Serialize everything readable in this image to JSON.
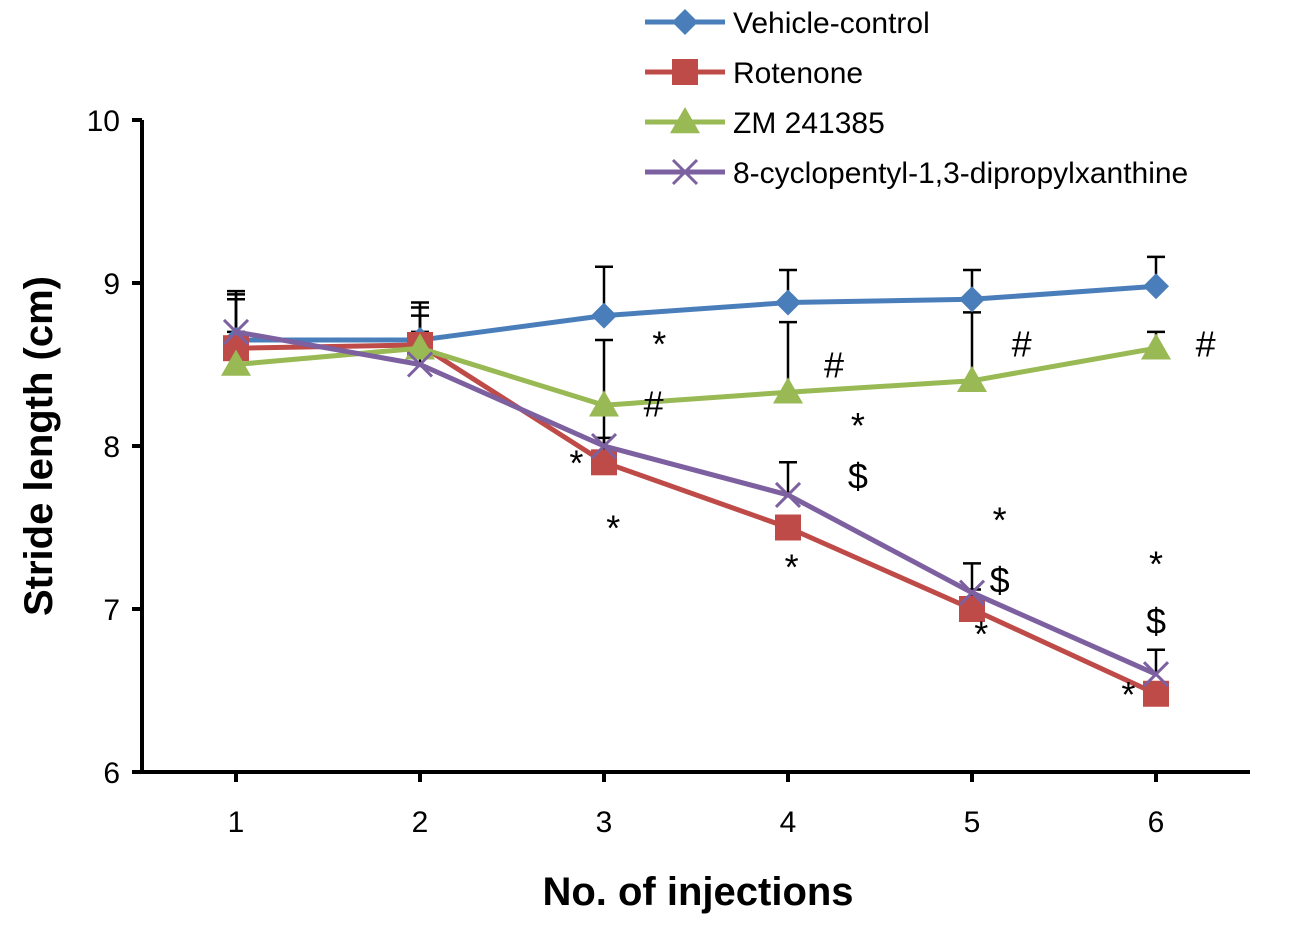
{
  "chart_data": {
    "type": "line",
    "title": "",
    "xlabel": "No. of injections",
    "ylabel": "Stride length (cm)",
    "x": [
      1,
      2,
      3,
      4,
      5,
      6
    ],
    "x_tick_labels": [
      "1",
      "2",
      "3",
      "4",
      "5",
      "6"
    ],
    "ylim": [
      6,
      10
    ],
    "y_ticks": [
      6,
      7,
      8,
      9,
      10
    ],
    "y_tick_labels": [
      "6",
      "7",
      "8",
      "9",
      "10"
    ],
    "grid": false,
    "legend_position": "top-right",
    "series": [
      {
        "name": "Vehicle-control",
        "color": "#4a7ebb",
        "marker": "diamond",
        "values": [
          8.65,
          8.65,
          8.8,
          8.88,
          8.9,
          8.98
        ],
        "error_upper": [
          8.93,
          8.88,
          9.1,
          9.08,
          9.08,
          9.16
        ]
      },
      {
        "name": "Rotenone",
        "color": "#be4b48",
        "marker": "square",
        "values": [
          8.6,
          8.62,
          7.9,
          7.5,
          7.0,
          6.48
        ],
        "error_upper": [
          8.9,
          8.85,
          8.05,
          7.55,
          7.12,
          6.55
        ]
      },
      {
        "name": "ZM 241385",
        "color": "#98b954",
        "marker": "triangle",
        "values": [
          8.5,
          8.6,
          8.25,
          8.33,
          8.4,
          8.6
        ],
        "error_upper": [
          8.7,
          8.8,
          8.65,
          8.76,
          8.82,
          8.7
        ]
      },
      {
        "name": "8-cyclopentyl-1,3-dipropylxanthine",
        "color": "#7d60a0",
        "marker": "x",
        "values": [
          8.7,
          8.5,
          8.0,
          7.7,
          7.1,
          6.6
        ],
        "error_upper": [
          8.95,
          8.7,
          8.2,
          7.9,
          7.28,
          6.75
        ]
      }
    ],
    "annotations": [
      {
        "text": "*",
        "x": 3.3,
        "y": 8.55
      },
      {
        "text": "#",
        "x": 3.27,
        "y": 8.18
      },
      {
        "text": "*",
        "x": 2.85,
        "y": 7.82
      },
      {
        "text": "*",
        "x": 3.05,
        "y": 7.42
      },
      {
        "text": "#",
        "x": 4.25,
        "y": 8.42
      },
      {
        "text": "*",
        "x": 4.38,
        "y": 8.05
      },
      {
        "text": "$",
        "x": 4.38,
        "y": 7.74
      },
      {
        "text": "*",
        "x": 4.02,
        "y": 7.18
      },
      {
        "text": "#",
        "x": 5.27,
        "y": 8.55
      },
      {
        "text": "*",
        "x": 5.15,
        "y": 7.47
      },
      {
        "text": "$",
        "x": 5.15,
        "y": 7.1
      },
      {
        "text": "*",
        "x": 5.05,
        "y": 6.77
      },
      {
        "text": "#",
        "x": 6.27,
        "y": 8.55
      },
      {
        "text": "*",
        "x": 6.0,
        "y": 7.2
      },
      {
        "text": "$",
        "x": 6.0,
        "y": 6.85
      },
      {
        "text": "*",
        "x": 5.85,
        "y": 6.4
      }
    ]
  }
}
